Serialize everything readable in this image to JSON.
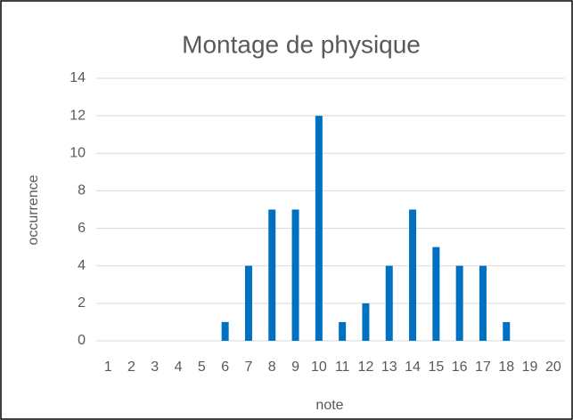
{
  "chart_data": {
    "type": "bar",
    "title": "Montage de physique",
    "x_label": "note",
    "y_label": "occurrence",
    "categories": [
      "1",
      "2",
      "3",
      "4",
      "5",
      "6",
      "7",
      "8",
      "9",
      "10",
      "11",
      "12",
      "13",
      "14",
      "15",
      "16",
      "17",
      "18",
      "19",
      "20"
    ],
    "values": [
      0,
      0,
      0,
      0,
      0,
      1,
      4,
      7,
      7,
      12,
      1,
      2,
      4,
      7,
      5,
      4,
      4,
      1,
      0,
      0
    ],
    "color": "#0070c0",
    "ylim": [
      0,
      14
    ],
    "yticks": [
      0,
      2,
      4,
      6,
      8,
      10,
      12,
      14
    ],
    "grid": true
  }
}
